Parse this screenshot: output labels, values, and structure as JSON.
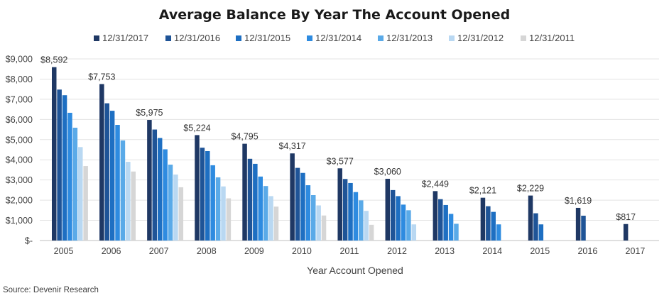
{
  "chart_data": {
    "type": "bar",
    "title": "Average Balance By Year The Account Opened",
    "xlabel": "Year Account Opened",
    "ylabel": "",
    "ylim": [
      0,
      9000
    ],
    "yticks": [
      0,
      1000,
      2000,
      3000,
      4000,
      5000,
      6000,
      7000,
      8000,
      9000
    ],
    "ytick_labels": [
      "$-",
      "$1,000",
      "$2,000",
      "$3,000",
      "$4,000",
      "$5,000",
      "$6,000",
      "$7,000",
      "$8,000",
      "$9,000"
    ],
    "categories": [
      "2005",
      "2006",
      "2007",
      "2008",
      "2009",
      "2010",
      "2011",
      "2012",
      "2013",
      "2014",
      "2015",
      "2016",
      "2017"
    ],
    "legend_position": "top",
    "grid": "horizontal",
    "series": [
      {
        "name": "12/31/2017",
        "color": "#1f3864",
        "values": [
          8592,
          7753,
          5975,
          5224,
          4795,
          4317,
          3577,
          3060,
          2449,
          2121,
          2229,
          1619,
          817
        ]
      },
      {
        "name": "12/31/2016",
        "color": "#1f5497",
        "values": [
          7480,
          6800,
          5500,
          4600,
          4050,
          3600,
          3050,
          2500,
          2050,
          1700,
          1350,
          1230,
          null
        ]
      },
      {
        "name": "12/31/2015",
        "color": "#1e6fc2",
        "values": [
          7200,
          6430,
          5080,
          4430,
          3800,
          3350,
          2850,
          2200,
          1760,
          1420,
          800,
          null,
          null
        ]
      },
      {
        "name": "12/31/2014",
        "color": "#2e8be0",
        "values": [
          6330,
          5730,
          4520,
          3730,
          3170,
          2740,
          2400,
          1780,
          1320,
          800,
          null,
          null,
          null
        ]
      },
      {
        "name": "12/31/2013",
        "color": "#5aaae8",
        "values": [
          5590,
          4960,
          3760,
          3130,
          2700,
          2250,
          1990,
          1500,
          830,
          null,
          null,
          null,
          null
        ]
      },
      {
        "name": "12/31/2012",
        "color": "#b9d8f2",
        "values": [
          4630,
          3900,
          3270,
          2680,
          2200,
          1740,
          1470,
          800,
          null,
          null,
          null,
          null,
          null
        ]
      },
      {
        "name": "12/31/2011",
        "color": "#d6d6d6",
        "values": [
          3690,
          3420,
          2640,
          2090,
          1680,
          1240,
          780,
          null,
          null,
          null,
          null,
          null,
          null
        ]
      }
    ],
    "data_labels": [
      "$8,592",
      "$7,753",
      "$5,975",
      "$5,224",
      "$4,795",
      "$4,317",
      "$3,577",
      "$3,060",
      "$2,449",
      "$2,121",
      "$2,229",
      "$1,619",
      "$817"
    ]
  },
  "source": "Source: Devenir Research"
}
